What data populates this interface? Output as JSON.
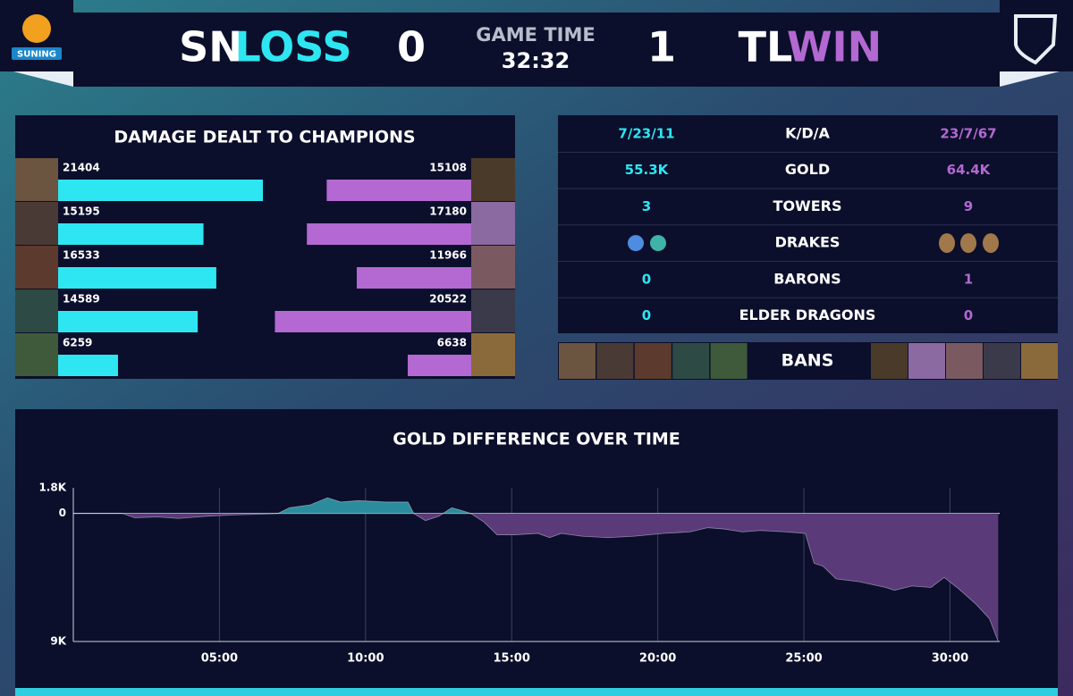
{
  "header": {
    "left_logo_text": "SUNING",
    "left_team": "SN",
    "left_result": "LOSS",
    "left_score": 0,
    "game_time_label": "GAME TIME",
    "game_time": "32:32",
    "right_score": 1,
    "right_team": "TL",
    "right_result": "WIN"
  },
  "stats": {
    "rows": [
      {
        "left": "7/23/11",
        "label": "K/D/A",
        "right": "23/7/67"
      },
      {
        "left": "55.3K",
        "label": "GOLD",
        "right": "64.4K"
      },
      {
        "left": "3",
        "label": "TOWERS",
        "right": "9"
      },
      {
        "label": "DRAKES"
      },
      {
        "left": "0",
        "label": "BARONS",
        "right": "1"
      },
      {
        "left": "0",
        "label": "ELDER DRAGONS",
        "right": "0"
      }
    ]
  },
  "bans": {
    "label": "BANS"
  },
  "chart_data": [
    {
      "type": "bar",
      "title": "DAMAGE DEALT TO CHAMPIONS",
      "series": [
        {
          "color": "#2ee6f2",
          "values": [
            21404,
            15195,
            16533,
            14589,
            6259
          ]
        },
        {
          "color": "#b368d2",
          "values": [
            15108,
            17180,
            11966,
            20522,
            6638
          ]
        }
      ]
    },
    {
      "type": "area",
      "title": "GOLD DIFFERENCE OVER TIME",
      "x": [
        1.68,
        2.1,
        2.9,
        3.6,
        4.55,
        5.5,
        6.4,
        7.0,
        7.4,
        8.1,
        8.7,
        9.15,
        9.75,
        10.7,
        11.45,
        11.65,
        12.05,
        12.5,
        12.95,
        13.3,
        13.6,
        14.05,
        14.5,
        15.1,
        15.9,
        16.3,
        16.7,
        17.4,
        18.3,
        19.2,
        20.2,
        21.1,
        21.7,
        22.3,
        22.9,
        23.5,
        24.4,
        25.05,
        25.35,
        25.65,
        26.1,
        26.9,
        27.8,
        28.1,
        28.7,
        29.35,
        29.8,
        30.3,
        30.9,
        31.35,
        31.65
      ],
      "values": [
        0,
        -300,
        -250,
        -350,
        -200,
        -100,
        -50,
        0,
        400,
        600,
        1100,
        800,
        900,
        800,
        800,
        0,
        -500,
        -200,
        400,
        200,
        0,
        -600,
        -1500,
        -1500,
        -1400,
        -1700,
        -1400,
        -1600,
        -1700,
        -1600,
        -1400,
        -1300,
        -1000,
        -1100,
        -1300,
        -1200,
        -1300,
        -1400,
        -3500,
        -3700,
        -4600,
        -4800,
        -5200,
        -5400,
        -5100,
        -5200,
        -4500,
        -5300,
        -6400,
        -7400,
        -9000
      ],
      "color_above": "#2a8c9c",
      "color_below": "#5a3a78",
      "line_color": "#c9c3dc",
      "xlim": [
        0,
        31.7
      ],
      "xticks": [
        {
          "value": 5,
          "label": "05:00"
        },
        {
          "value": 10,
          "label": "10:00"
        },
        {
          "value": 15,
          "label": "15:00"
        },
        {
          "value": 20,
          "label": "20:00"
        },
        {
          "value": 25,
          "label": "25:00"
        },
        {
          "value": 30,
          "label": "30:00"
        }
      ],
      "ylim": [
        -9000,
        1800
      ],
      "yticks": [
        {
          "value": 1800,
          "label": "1.8K"
        },
        0,
        {
          "value": -9000,
          "label": "9K"
        }
      ],
      "grid": true
    }
  ]
}
